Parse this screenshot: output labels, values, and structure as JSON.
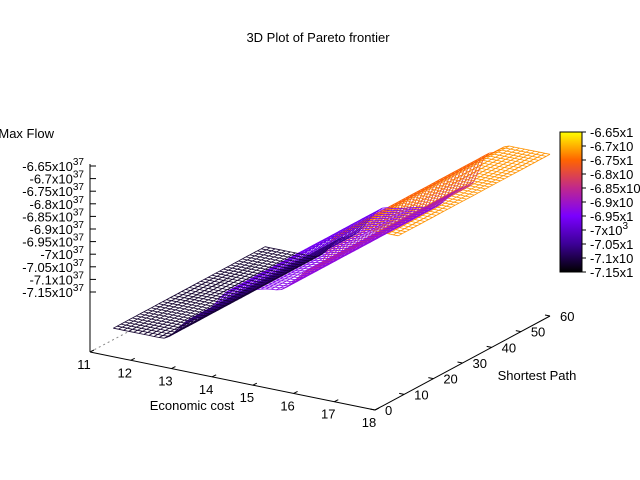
{
  "chart_data": {
    "type": "surface",
    "title": "3D Plot of Pareto frontier",
    "xlabel": "Economic cost",
    "ylabel": "Shortest Path",
    "zlabel": "Max Flow",
    "xlim": [
      11,
      18
    ],
    "ylim": [
      0,
      60
    ],
    "zlim": [
      -7.15e+37,
      -6.65e+37
    ],
    "x_ticks": [
      "11",
      "12",
      "13",
      "14",
      "15",
      "16",
      "17",
      "18"
    ],
    "y_ticks": [
      "0",
      "10",
      "20",
      "30",
      "40",
      "50",
      "60"
    ],
    "z_ticks": [
      {
        "mantissa": "-6.65x10",
        "exp": "37"
      },
      {
        "mantissa": "-6.7x10",
        "exp": "37"
      },
      {
        "mantissa": "-6.75x10",
        "exp": "37"
      },
      {
        "mantissa": "-6.8x10",
        "exp": "37"
      },
      {
        "mantissa": "-6.85x10",
        "exp": "37"
      },
      {
        "mantissa": "-6.9x10",
        "exp": "37"
      },
      {
        "mantissa": "-6.95x10",
        "exp": "37"
      },
      {
        "mantissa": "-7x10",
        "exp": "37"
      },
      {
        "mantissa": "-7.05x10",
        "exp": "37"
      },
      {
        "mantissa": "-7.1x10",
        "exp": "37"
      },
      {
        "mantissa": "-7.15x10",
        "exp": "37"
      }
    ],
    "colorbar_ticks": [
      {
        "mantissa": "-6.65x1",
        "exp": ""
      },
      {
        "mantissa": "-6.7x10",
        "exp": ""
      },
      {
        "mantissa": "-6.75x1",
        "exp": ""
      },
      {
        "mantissa": "-6.8x10",
        "exp": ""
      },
      {
        "mantissa": "-6.85x10",
        "exp": ""
      },
      {
        "mantissa": "-6.9x10",
        "exp": ""
      },
      {
        "mantissa": "-6.95x1",
        "exp": ""
      },
      {
        "mantissa": "-7x10",
        "exp": "3"
      },
      {
        "mantissa": "-7.05x1",
        "exp": ""
      },
      {
        "mantissa": "-7.1x10",
        "exp": ""
      },
      {
        "mantissa": "-7.15x1",
        "exp": ""
      }
    ],
    "surface_profile": {
      "axis": "Economic cost",
      "x": [
        11,
        12.2,
        13,
        14,
        15,
        16,
        16.5,
        17,
        18
      ],
      "z": [
        -7.12e+37,
        -7.12e+37,
        -7.05e+37,
        -6.95e+37,
        -6.93e+37,
        -6.85e+37,
        -6.75e+37,
        -6.72e+37,
        -6.72e+37
      ]
    },
    "colors": [
      "#000000",
      "#3c0096",
      "#7a00ff",
      "#c0288c",
      "#ff6400",
      "#ffff00"
    ],
    "grid": false,
    "colorbar": "right"
  }
}
